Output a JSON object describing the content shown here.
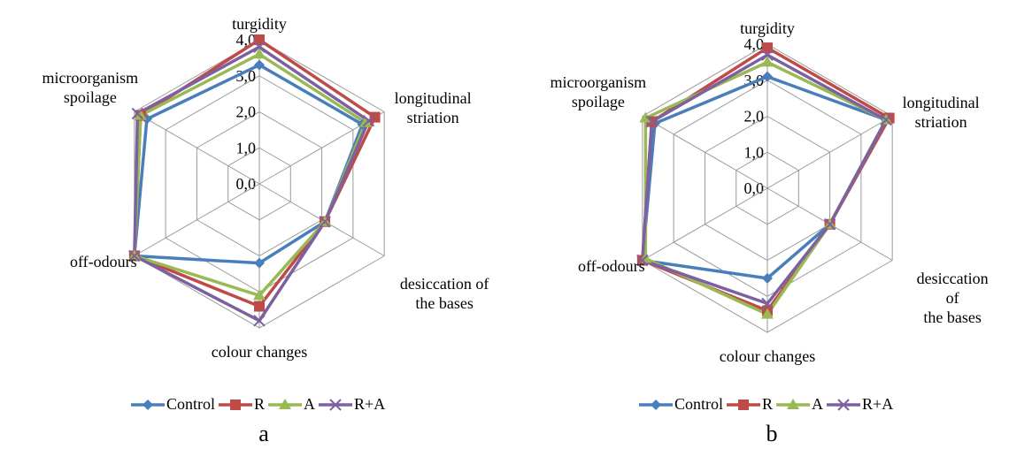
{
  "chart_data": [
    {
      "type": "radar",
      "caption": "a",
      "categories": [
        "turgidity",
        "longitudinal\nstriation",
        "desiccation of\nthe bases",
        "colour changes",
        "off-odours",
        "microorganism\nspoilage"
      ],
      "ylim": [
        0,
        4
      ],
      "yticks": [
        {
          "value": 0,
          "label": "0,0"
        },
        {
          "value": 1,
          "label": "1,0"
        },
        {
          "value": 2,
          "label": "2,0"
        },
        {
          "value": 3,
          "label": "3,0"
        },
        {
          "value": 4,
          "label": "4,0"
        }
      ],
      "series": [
        {
          "name": "Control",
          "color": "#4a7ebb",
          "marker": "diamond",
          "values": [
            3.3,
            3.3,
            2.1,
            2.2,
            4.0,
            3.6
          ]
        },
        {
          "name": "R",
          "color": "#be4b48",
          "marker": "square",
          "values": [
            4.0,
            3.7,
            2.1,
            3.4,
            4.0,
            3.8
          ]
        },
        {
          "name": "A",
          "color": "#98b954",
          "marker": "triangle",
          "values": [
            3.6,
            3.4,
            2.1,
            3.1,
            4.0,
            3.8
          ]
        },
        {
          "name": "R+A",
          "color": "#7d60a0",
          "marker": "x",
          "values": [
            3.8,
            3.5,
            2.1,
            3.8,
            4.0,
            3.9
          ]
        }
      ]
    },
    {
      "type": "radar",
      "caption": "b",
      "categories": [
        "turgidity",
        "longitudinal\nstriation",
        "desiccation of\nthe bases",
        "colour changes",
        "off-odours",
        "microorganism\nspoilage"
      ],
      "ylim": [
        0,
        4
      ],
      "yticks": [
        {
          "value": 0,
          "label": "0,0"
        },
        {
          "value": 1,
          "label": "1,0"
        },
        {
          "value": 2,
          "label": "2,0"
        },
        {
          "value": 3,
          "label": "3,0"
        },
        {
          "value": 4,
          "label": "4,0"
        }
      ],
      "series": [
        {
          "name": "Control",
          "color": "#4a7ebb",
          "marker": "diamond",
          "values": [
            3.1,
            3.8,
            2.0,
            2.5,
            4.0,
            3.6
          ]
        },
        {
          "name": "R",
          "color": "#be4b48",
          "marker": "square",
          "values": [
            3.9,
            3.9,
            2.0,
            3.4,
            4.0,
            3.7
          ]
        },
        {
          "name": "A",
          "color": "#98b954",
          "marker": "triangle",
          "values": [
            3.5,
            3.8,
            2.0,
            3.5,
            3.9,
            3.9
          ]
        },
        {
          "name": "R+A",
          "color": "#7d60a0",
          "marker": "x",
          "values": [
            3.7,
            3.8,
            2.0,
            3.2,
            4.0,
            3.7
          ]
        }
      ]
    }
  ]
}
